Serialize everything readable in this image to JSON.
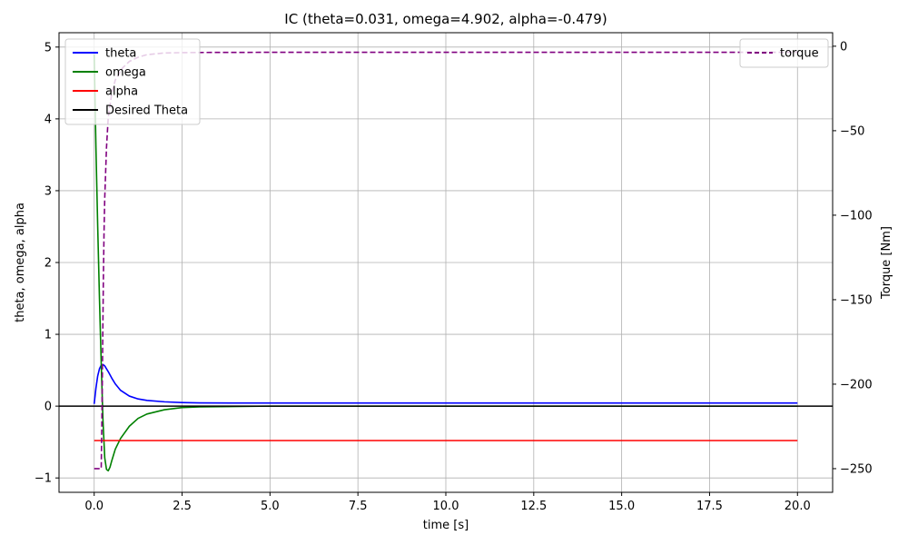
{
  "chart_data": {
    "type": "line",
    "title": "IC (theta=0.031, omega=4.902, alpha=-0.479)",
    "xlabel": "time [s]",
    "ylabel": "theta, omega, alpha",
    "y2label": "Torque [Nm]",
    "xlim": [
      -1,
      21
    ],
    "ylim": [
      -1.2,
      5.2
    ],
    "y2lim": [
      -264,
      8
    ],
    "grid": true,
    "x_ticks": [
      0,
      2.5,
      5,
      7.5,
      10,
      12.5,
      15,
      17.5,
      20
    ],
    "x_tick_labels": [
      "0.0",
      "2.5",
      "5.0",
      "7.5",
      "10.0",
      "12.5",
      "15.0",
      "17.5",
      "20.0"
    ],
    "y_ticks": [
      -1,
      0,
      1,
      2,
      3,
      4,
      5
    ],
    "y_tick_labels": [
      "−1",
      "0",
      "1",
      "2",
      "3",
      "4",
      "5"
    ],
    "y2_ticks": [
      0,
      -50,
      -100,
      -150,
      -200,
      -250
    ],
    "y2_tick_labels": [
      "0",
      "−50",
      "−100",
      "−150",
      "−200",
      "−250"
    ],
    "legend_left": {
      "placement": "upper-left",
      "entries": [
        {
          "name": "theta",
          "color": "#0000ff",
          "style": "solid"
        },
        {
          "name": "omega",
          "color": "#008000",
          "style": "solid"
        },
        {
          "name": "alpha",
          "color": "#ff0000",
          "style": "solid"
        },
        {
          "name": "Desired Theta",
          "color": "#000000",
          "style": "solid"
        }
      ]
    },
    "legend_right": {
      "placement": "upper-right",
      "entries": [
        {
          "name": "torque",
          "color": "#800080",
          "style": "dashed"
        }
      ]
    },
    "series": [
      {
        "name": "theta",
        "axis": "left",
        "color": "#0000ff",
        "style": "solid",
        "x": [
          0,
          0.05,
          0.1,
          0.15,
          0.2,
          0.25,
          0.3,
          0.4,
          0.5,
          0.6,
          0.75,
          1.0,
          1.25,
          1.5,
          2.0,
          2.5,
          3.0,
          5.0,
          10.0,
          15.0,
          20.0
        ],
        "y": [
          0.031,
          0.25,
          0.42,
          0.52,
          0.57,
          0.58,
          0.56,
          0.48,
          0.39,
          0.31,
          0.22,
          0.14,
          0.1,
          0.08,
          0.06,
          0.05,
          0.045,
          0.043,
          0.043,
          0.043,
          0.043
        ]
      },
      {
        "name": "omega",
        "axis": "left",
        "color": "#008000",
        "style": "solid",
        "x": [
          0,
          0.05,
          0.1,
          0.15,
          0.2,
          0.25,
          0.3,
          0.35,
          0.4,
          0.45,
          0.5,
          0.6,
          0.75,
          1.0,
          1.25,
          1.5,
          2.0,
          2.5,
          3.0,
          5.0,
          10.0,
          15.0,
          20.0
        ],
        "y": [
          4.902,
          3.6,
          2.5,
          1.5,
          0.6,
          -0.2,
          -0.72,
          -0.88,
          -0.9,
          -0.85,
          -0.76,
          -0.6,
          -0.45,
          -0.28,
          -0.17,
          -0.11,
          -0.05,
          -0.02,
          -0.01,
          0,
          0,
          0,
          0
        ]
      },
      {
        "name": "alpha",
        "axis": "left",
        "color": "#ff0000",
        "style": "solid",
        "x": [
          0,
          20
        ],
        "y": [
          -0.479,
          -0.479
        ]
      },
      {
        "name": "Desired Theta",
        "axis": "left",
        "color": "#000000",
        "style": "solid",
        "span": "full",
        "x": [
          -1,
          21
        ],
        "y": [
          0,
          0
        ]
      },
      {
        "name": "torque",
        "axis": "right",
        "color": "#800080",
        "style": "dashed",
        "x": [
          0,
          0.2,
          0.22,
          0.24,
          0.26,
          0.28,
          0.3,
          0.35,
          0.4,
          0.5,
          0.6,
          0.8,
          1.0,
          1.25,
          1.5,
          2.0,
          2.5,
          3.0,
          5.0,
          10.0,
          15.0,
          20.0
        ],
        "y": [
          -250,
          -250,
          -220,
          -180,
          -140,
          -110,
          -90,
          -60,
          -42,
          -28,
          -20,
          -13,
          -9,
          -6.5,
          -5,
          -4,
          -3.8,
          -3.7,
          -3.6,
          -3.6,
          -3.6,
          -3.6
        ]
      }
    ]
  }
}
